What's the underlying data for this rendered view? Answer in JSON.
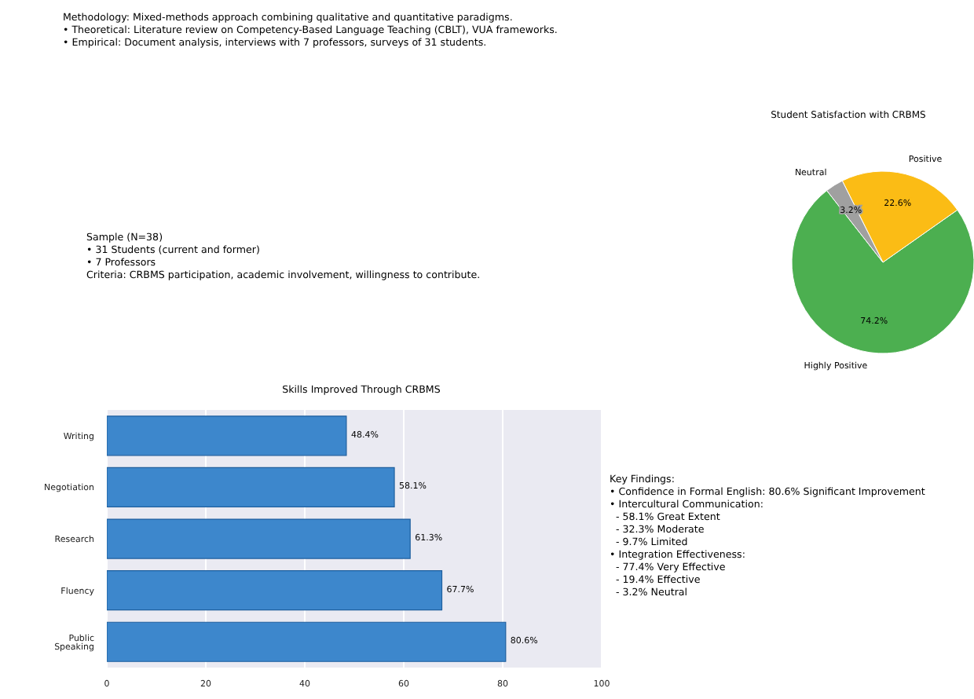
{
  "chart_data": [
    {
      "type": "other",
      "annotations": [
        "Methodology: Mixed-methods approach combining qualitative and quantitative paradigms.",
        "• Theoretical: Literature review on Competency-Based Language Teaching (CBLT), VUA frameworks.",
        "• Empirical: Document analysis, interviews with 7 professors, surveys of 31 students."
      ]
    },
    {
      "type": "other",
      "annotations": [
        "Sample (N=38)",
        "• 31 Students (current and former)",
        "• 7 Professors",
        "Criteria: CRBMS participation, academic involvement, willingness to contribute."
      ]
    },
    {
      "type": "pie",
      "title": "Student Satisfaction with CRBMS",
      "categories": [
        "Highly Positive",
        "Positive",
        "Neutral"
      ],
      "values": [
        74.2,
        22.6,
        3.2
      ],
      "colors": [
        "#4caf50",
        "#fbbc15",
        "#a0a0a0"
      ],
      "value_labels": [
        "74.2%",
        "22.6%",
        "3.2%"
      ]
    },
    {
      "type": "bar",
      "orientation": "horizontal",
      "title": "Skills Improved Through CRBMS",
      "categories": [
        "Writing",
        "Negotiation",
        "Research",
        "Fluency",
        "Public Speaking"
      ],
      "values": [
        48.4,
        58.1,
        61.3,
        67.7,
        80.6
      ],
      "color": "#3d87cc",
      "value_labels": [
        "48.4%",
        "58.1%",
        "61.3%",
        "67.7%",
        "80.6%"
      ],
      "xlim": [
        0,
        100
      ],
      "xticks": [
        0,
        20,
        40,
        60,
        80,
        100
      ],
      "grid": "x"
    },
    {
      "type": "other",
      "annotations": [
        "Key Findings:",
        "• Confidence in Formal English: 80.6% Significant Improvement",
        "• Intercultural Communication:",
        "  - 58.1% Great Extent",
        "  - 32.3% Moderate",
        "  - 9.7% Limited",
        "• Integration Effectiveness:",
        "  - 77.4% Very Effective",
        "  - 19.4% Effective",
        "  - 3.2% Neutral"
      ]
    }
  ]
}
